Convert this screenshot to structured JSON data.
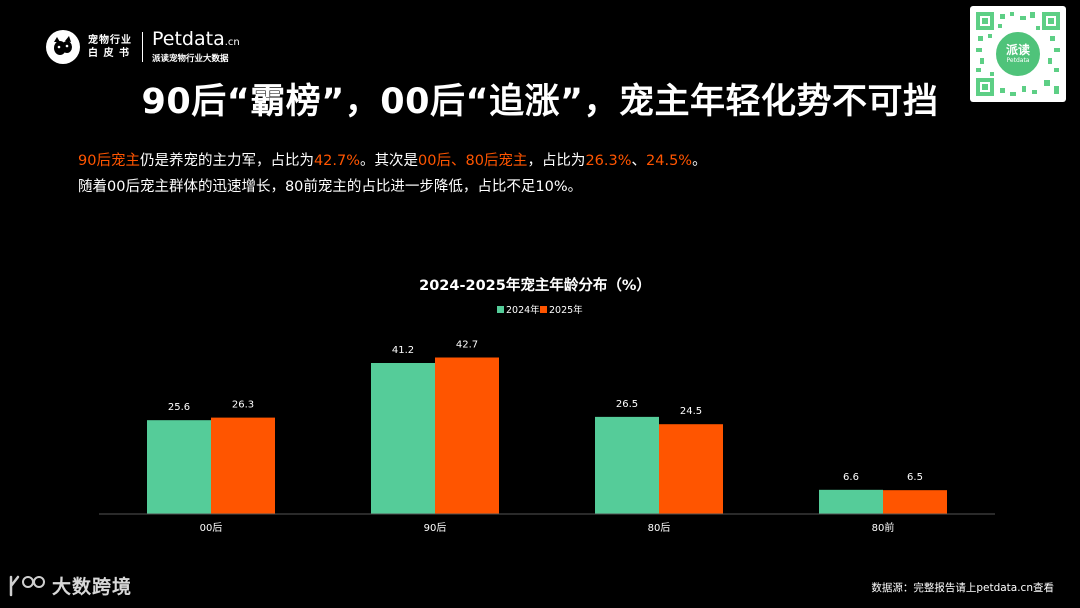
{
  "header": {
    "brand_wb_line1": "宠物行业",
    "brand_wb_line2": "白 皮 书",
    "brand_pd": "Petdata",
    "brand_pd_suffix": ".cn",
    "brand_pd_sub": "派读宠物行业大数据"
  },
  "qr": {
    "center_line1": "派读",
    "center_line2": "Petdata"
  },
  "title": "90后“霸榜”，00后“追涨”，宠主年轻化势不可挡",
  "description": {
    "line1": [
      {
        "text": "90后宠主",
        "hl": true
      },
      {
        "text": "仍是养宠的主力军，占比为",
        "hl": false
      },
      {
        "text": "42.7%",
        "hl": true
      },
      {
        "text": "。其次是",
        "hl": false
      },
      {
        "text": "00后、80后宠主",
        "hl": true
      },
      {
        "text": "，占比为",
        "hl": false
      },
      {
        "text": "26.3%",
        "hl": true
      },
      {
        "text": "、",
        "hl": false
      },
      {
        "text": "24.5%",
        "hl": true
      },
      {
        "text": "。",
        "hl": false
      }
    ],
    "line2": "随着00后宠主群体的迅速增长，80前宠主的占比进一步降低，占比不足10%。"
  },
  "chart_data": {
    "type": "bar",
    "title": "2024-2025年宠主年龄分布（%）",
    "categories": [
      "00后",
      "90后",
      "80后",
      "80前"
    ],
    "series": [
      {
        "name": "2024年",
        "values": [
          25.6,
          41.2,
          26.5,
          6.6
        ],
        "color": "#55cc99"
      },
      {
        "name": "2025年",
        "values": [
          26.3,
          42.7,
          24.5,
          6.5
        ],
        "color": "#ff5500"
      }
    ],
    "xlabel": "",
    "ylabel": "",
    "ylim": [
      0,
      45
    ],
    "grid": false,
    "legend": "top-center"
  },
  "footer": {
    "logo_text": "大数跨境",
    "source": "数据源：完整报告请上petdata.cn查看"
  },
  "colors": {
    "background": "#000000",
    "highlight": "#ff5500",
    "series_2024": "#55cc99",
    "series_2025": "#ff5500"
  }
}
